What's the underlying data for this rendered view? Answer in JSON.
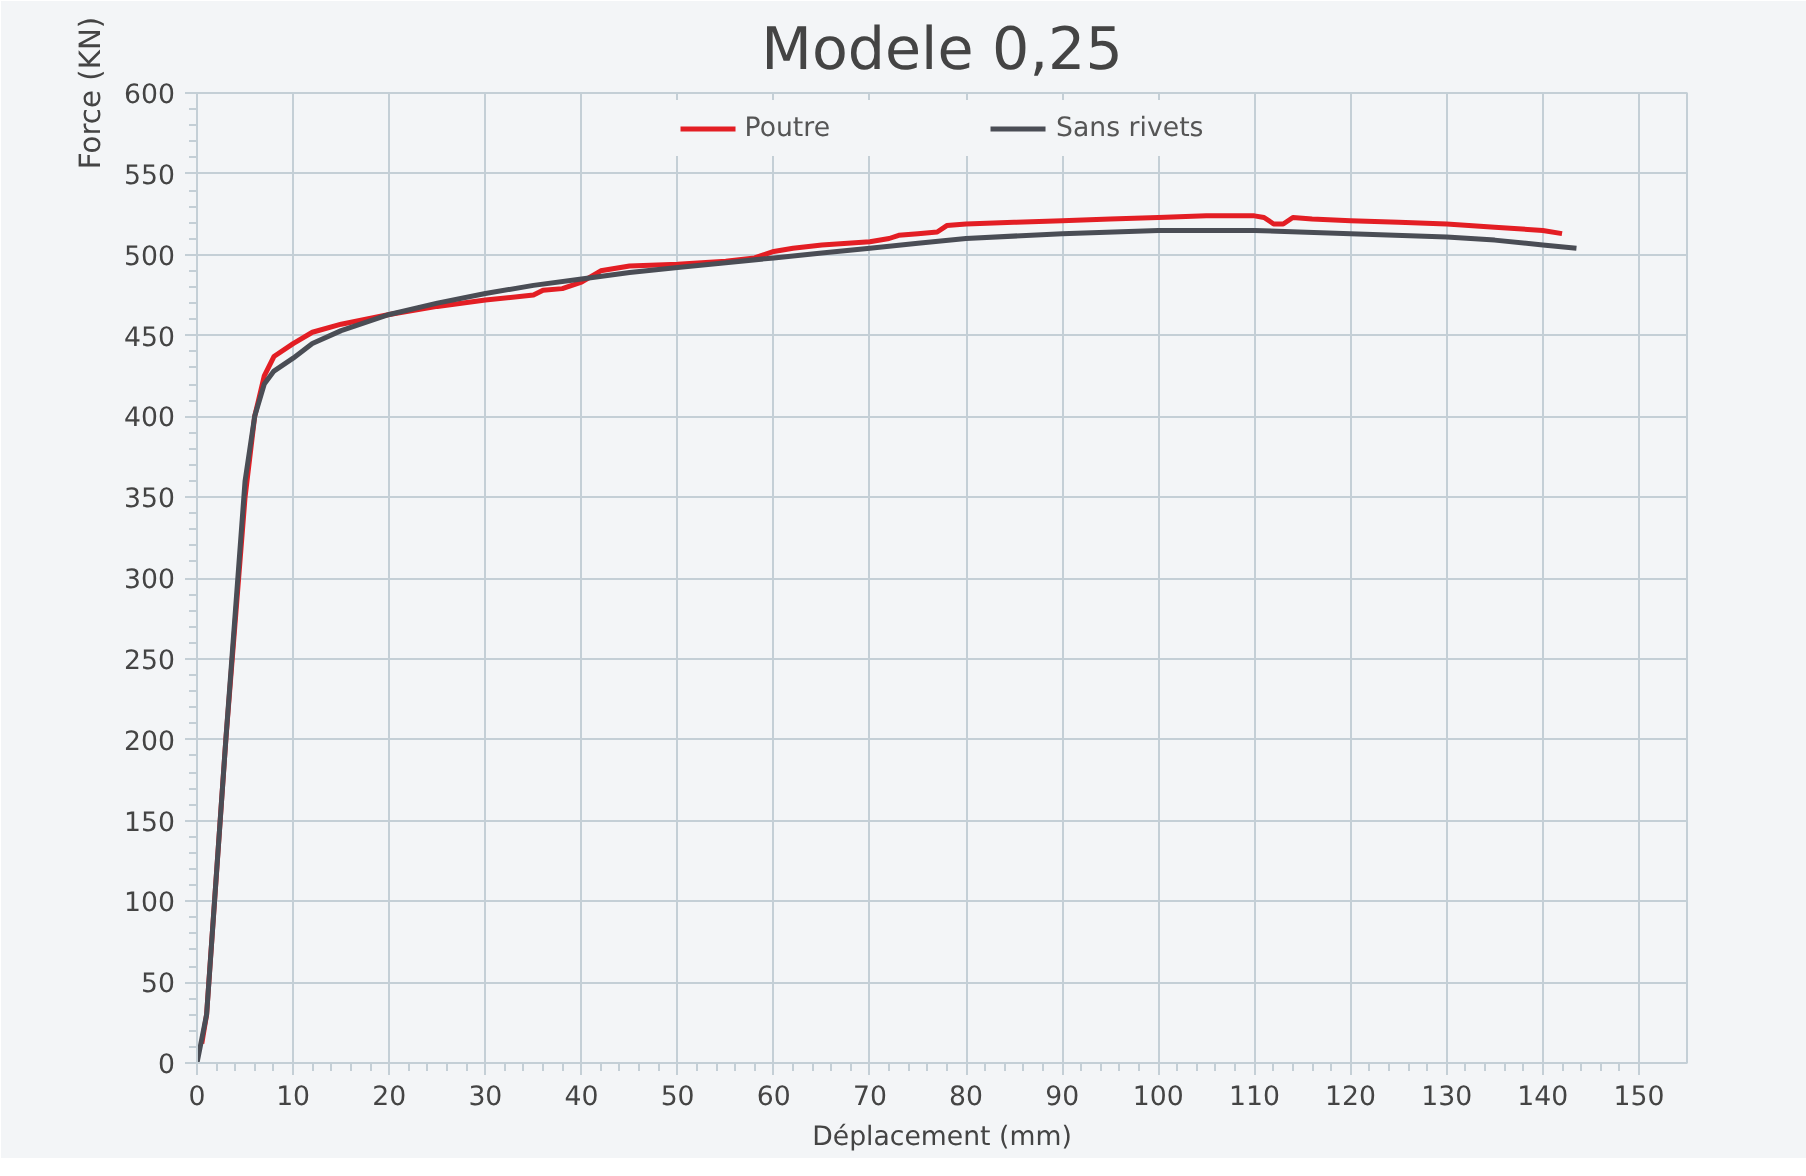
{
  "chart_data": {
    "type": "line",
    "title": "Modele 0,25",
    "xlabel": "Déplacement (mm)",
    "ylabel": "Force (KN)",
    "xlim": [
      0,
      155
    ],
    "xticks": [
      0,
      10,
      20,
      30,
      40,
      50,
      60,
      70,
      80,
      90,
      100,
      110,
      120,
      130,
      140,
      150
    ],
    "ylim": [
      0,
      600
    ],
    "yticks": [
      0,
      50,
      100,
      150,
      200,
      250,
      300,
      350,
      400,
      450,
      500,
      550,
      600
    ],
    "grid": true,
    "legend": "top",
    "marker": "none",
    "line_style": "solid",
    "series": [
      {
        "name": "Poutre",
        "color": "#e31e24",
        "x": [
          0.5,
          1,
          3,
          5,
          6,
          7,
          8,
          10,
          12,
          15,
          20,
          25,
          30,
          35,
          36,
          38,
          40,
          42,
          45,
          50,
          55,
          58,
          60,
          62,
          65,
          70,
          72,
          73,
          75,
          77,
          78,
          80,
          85,
          90,
          95,
          100,
          105,
          110,
          111,
          112,
          113,
          114,
          116,
          120,
          125,
          130,
          135,
          140,
          142
        ],
        "values": [
          12,
          30,
          200,
          350,
          400,
          425,
          437,
          445,
          452,
          457,
          463,
          468,
          472,
          475,
          478,
          479,
          483,
          490,
          493,
          494,
          496,
          498,
          502,
          504,
          506,
          508,
          510,
          512,
          513,
          514,
          518,
          519,
          520,
          521,
          522,
          523,
          524,
          524,
          523,
          519,
          519,
          523,
          522,
          521,
          520,
          519,
          517,
          515,
          513
        ]
      },
      {
        "name": "Sans rivets",
        "color": "#4a4d55",
        "x": [
          0,
          1,
          3,
          5,
          6,
          7,
          8,
          10,
          12,
          15,
          20,
          25,
          30,
          35,
          40,
          45,
          50,
          55,
          60,
          65,
          70,
          75,
          80,
          90,
          100,
          110,
          120,
          130,
          135,
          140,
          143.5
        ],
        "values": [
          0,
          30,
          200,
          360,
          400,
          420,
          428,
          436,
          445,
          453,
          463,
          470,
          476,
          481,
          485,
          489,
          492,
          495,
          498,
          501,
          504,
          507,
          510,
          513,
          515,
          515,
          513,
          511,
          509,
          506,
          504
        ]
      }
    ]
  }
}
